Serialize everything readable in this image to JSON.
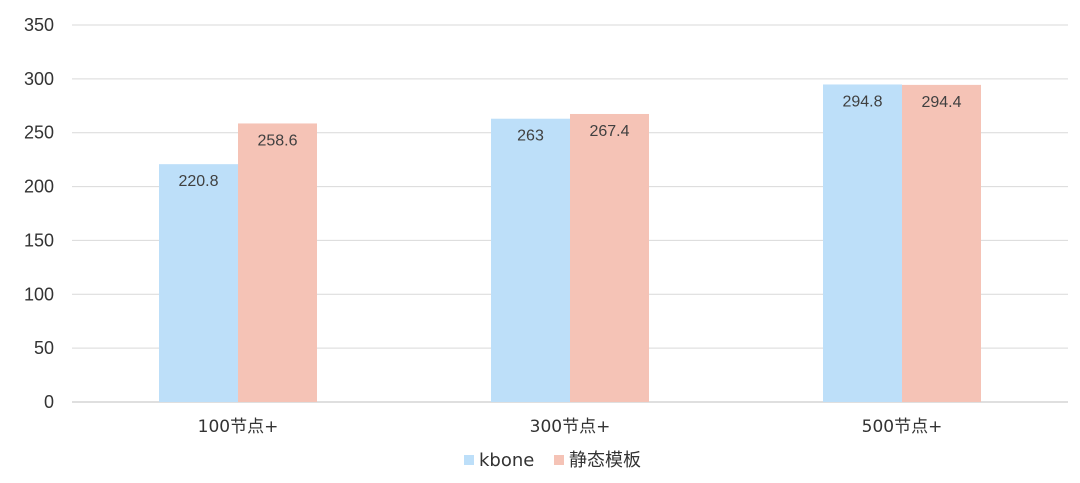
{
  "chart_data": {
    "type": "bar",
    "categories": [
      "100节点+",
      "300节点+",
      "500节点+"
    ],
    "series": [
      {
        "name": "kbone",
        "values": [
          220.8,
          263,
          294.8
        ],
        "labels": [
          "220.8",
          "263",
          "294.8"
        ],
        "color": "#bddff9"
      },
      {
        "name": "静态模板",
        "values": [
          258.6,
          267.4,
          294.4
        ],
        "labels": [
          "258.6",
          "267.4",
          "294.4"
        ],
        "color": "#f5c3b6"
      }
    ],
    "ylim": [
      0,
      350
    ],
    "yticks": [
      "0",
      "50",
      "100",
      "150",
      "200",
      "250",
      "300",
      "350"
    ],
    "grid": true,
    "legend": "bottom-center",
    "title": "",
    "xlabel": "",
    "ylabel": ""
  }
}
